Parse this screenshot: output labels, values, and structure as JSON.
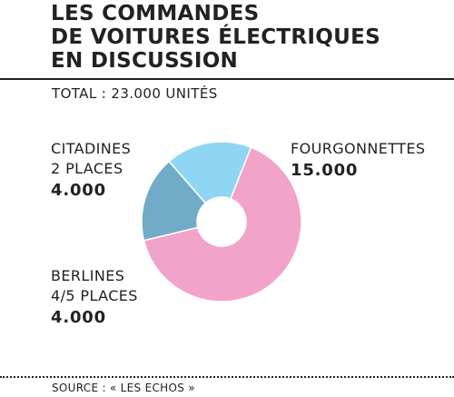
{
  "title_lines": [
    "LES COMMANDES",
    "DE VOITURES ÉLECTRIQUES",
    "EN DISCUSSION"
  ],
  "total": "TOTAL : 23.000 UNITÉS",
  "source": "SOURCE : « LES ECHOS »",
  "colors": {
    "citadines": "#8fd6f4",
    "berlines": "#72abc8",
    "fourgonnettes": "#f2a3c9",
    "text": "#222222"
  },
  "chart_data": {
    "type": "pie",
    "style": "donut",
    "categories": [
      "CITADINES 2 PLACES",
      "BERLINES 4/5 PLACES",
      "FOURGONNETTES"
    ],
    "values": [
      4000,
      4000,
      15000
    ],
    "total": 23000,
    "labels": {
      "citadines": {
        "lines": [
          "CITADINES",
          "2 PLACES"
        ],
        "value": "4.000"
      },
      "berlines": {
        "lines": [
          "BERLINES",
          "4/5 PLACES"
        ],
        "value": "4.000"
      },
      "fourgonnettes": {
        "lines": [
          "FOURGONNETTES"
        ],
        "value": "15.000"
      }
    }
  }
}
